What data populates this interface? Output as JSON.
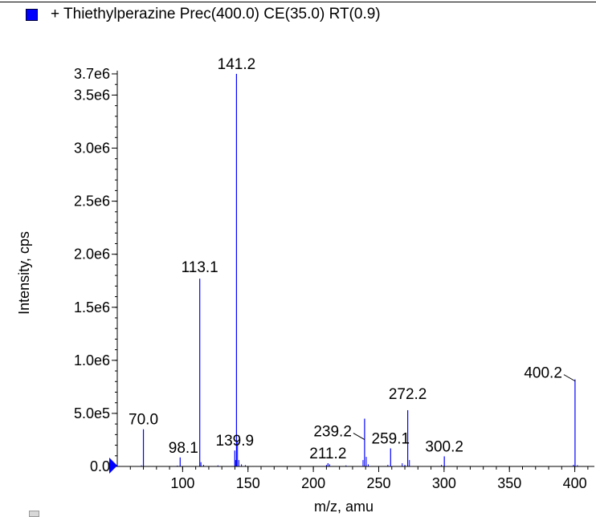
{
  "legend": {
    "label": "+ Thiethylperazine Prec(400.0) CE(35.0) RT(0.9)",
    "swatch_color": "#0000ff"
  },
  "chart_data": {
    "type": "bar",
    "xlabel": "m/z, amu",
    "ylabel": "Intensity, cps",
    "xlim": [
      50,
      415
    ],
    "ylim": [
      0,
      3700000
    ],
    "x_ticks": [
      100,
      150,
      200,
      250,
      300,
      350,
      400
    ],
    "y_ticks": [
      {
        "value": 0,
        "label": "0.0"
      },
      {
        "value": 500000,
        "label": "5.0e5"
      },
      {
        "value": 1000000,
        "label": "1.0e6"
      },
      {
        "value": 1500000,
        "label": "1.5e6"
      },
      {
        "value": 2000000,
        "label": "2.0e6"
      },
      {
        "value": 2500000,
        "label": "2.5e6"
      },
      {
        "value": 3000000,
        "label": "3.0e6"
      },
      {
        "value": 3500000,
        "label": "3.5e6"
      },
      {
        "value": 3700000,
        "label": "3.7e6"
      }
    ],
    "series_color": "#0000ff",
    "peaks": [
      {
        "mz": 70.0,
        "intensity": 350000,
        "label": "70.0"
      },
      {
        "mz": 98.1,
        "intensity": 85000,
        "label": "98.1"
      },
      {
        "mz": 113.1,
        "intensity": 1770000,
        "label": "113.1"
      },
      {
        "mz": 139.9,
        "intensity": 150000,
        "label": "139.9"
      },
      {
        "mz": 141.2,
        "intensity": 3700000,
        "label": "141.2"
      },
      {
        "mz": 211.2,
        "intensity": 30000,
        "label": "211.2"
      },
      {
        "mz": 239.2,
        "intensity": 450000,
        "label": "239.2"
      },
      {
        "mz": 259.1,
        "intensity": 170000,
        "label": "259.1"
      },
      {
        "mz": 272.2,
        "intensity": 530000,
        "label": "272.2"
      },
      {
        "mz": 300.2,
        "intensity": 95000,
        "label": "300.2"
      },
      {
        "mz": 400.2,
        "intensity": 820000,
        "label": "400.2"
      }
    ],
    "minor_peaks": [
      {
        "mz": 68.5,
        "intensity": 10000
      },
      {
        "mz": 96.0,
        "intensity": 8000
      },
      {
        "mz": 114.0,
        "intensity": 40000
      },
      {
        "mz": 116.0,
        "intensity": 15000
      },
      {
        "mz": 127.0,
        "intensity": 10000
      },
      {
        "mz": 140.5,
        "intensity": 60000
      },
      {
        "mz": 142.0,
        "intensity": 240000
      },
      {
        "mz": 143.0,
        "intensity": 60000
      },
      {
        "mz": 145.0,
        "intensity": 20000
      },
      {
        "mz": 148.0,
        "intensity": 12000
      },
      {
        "mz": 210.0,
        "intensity": 15000
      },
      {
        "mz": 212.5,
        "intensity": 20000
      },
      {
        "mz": 225.0,
        "intensity": 10000
      },
      {
        "mz": 238.0,
        "intensity": 60000
      },
      {
        "mz": 240.5,
        "intensity": 90000
      },
      {
        "mz": 242.0,
        "intensity": 20000
      },
      {
        "mz": 257.0,
        "intensity": 15000
      },
      {
        "mz": 268.0,
        "intensity": 30000
      },
      {
        "mz": 270.0,
        "intensity": 15000
      },
      {
        "mz": 273.5,
        "intensity": 60000
      },
      {
        "mz": 298.0,
        "intensity": 15000
      },
      {
        "mz": 399.0,
        "intensity": 15000
      },
      {
        "mz": 402.0,
        "intensity": 12000
      }
    ]
  }
}
